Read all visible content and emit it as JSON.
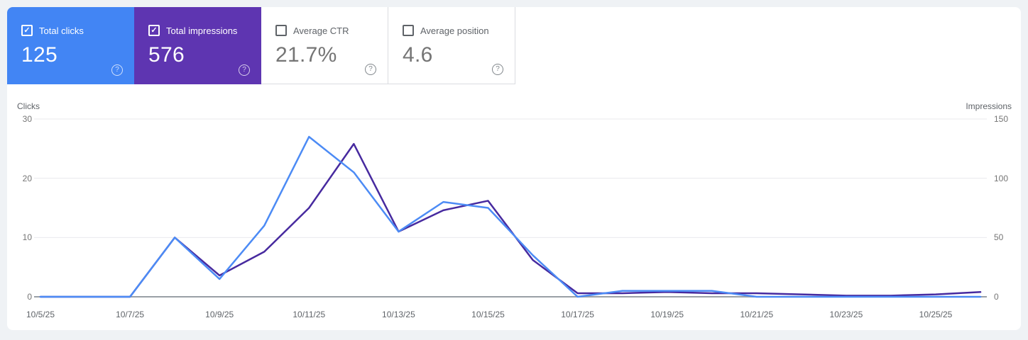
{
  "icons": {
    "help": "?",
    "check": "✓"
  },
  "colors": {
    "page_background": "#eff2f5",
    "panel_background": "#ffffff",
    "clicks_card": "#4285f4",
    "impressions_card": "#5e35b1",
    "clicks_line": "#4c8bf5",
    "impressions_line": "#472a9f",
    "gridline": "#e9eaed",
    "zero_axis": "#9aa0a6",
    "muted_text": "#5f6368"
  },
  "cards": [
    {
      "id": "total-clicks",
      "label": "Total clicks",
      "value": "125",
      "checked": true,
      "check_glyph": "✓"
    },
    {
      "id": "total-impressions",
      "label": "Total impressions",
      "value": "576",
      "checked": true,
      "check_glyph": "✓"
    },
    {
      "id": "average-ctr",
      "label": "Average CTR",
      "value": "21.7%",
      "checked": false,
      "check_glyph": ""
    },
    {
      "id": "average-position",
      "label": "Average position",
      "value": "4.6",
      "checked": false,
      "check_glyph": ""
    }
  ],
  "chart_data": {
    "type": "line",
    "categories": [
      "10/5/25",
      "10/6/25",
      "10/7/25",
      "10/8/25",
      "10/9/25",
      "10/10/25",
      "10/11/25",
      "10/12/25",
      "10/13/25",
      "10/14/25",
      "10/15/25",
      "10/16/25",
      "10/17/25",
      "10/18/25",
      "10/19/25",
      "10/20/25",
      "10/21/25",
      "10/22/25",
      "10/23/25",
      "10/24/25",
      "10/25/25",
      "10/26/25"
    ],
    "x_label_step": 2,
    "series": [
      {
        "name": "Clicks",
        "axis": "left",
        "color": "#4c8bf5",
        "values": [
          0,
          0,
          0,
          10,
          3,
          12,
          27,
          21,
          11,
          16,
          15,
          7,
          0,
          1,
          1,
          1,
          0,
          0,
          0,
          0,
          0,
          0
        ]
      },
      {
        "name": "Impressions",
        "axis": "right",
        "color": "#472a9f",
        "values": [
          0,
          0,
          0,
          50,
          18,
          38,
          75,
          129,
          55,
          73,
          81,
          31,
          3,
          3,
          4,
          3,
          3,
          2,
          1,
          1,
          2,
          4
        ]
      }
    ],
    "left_axis": {
      "title": "Clicks",
      "ticks": [
        0,
        10,
        20,
        30
      ],
      "max": 30
    },
    "right_axis": {
      "title": "Impressions",
      "ticks": [
        0,
        50,
        100,
        150
      ],
      "max": 150
    },
    "grid": true,
    "legend": "none"
  }
}
